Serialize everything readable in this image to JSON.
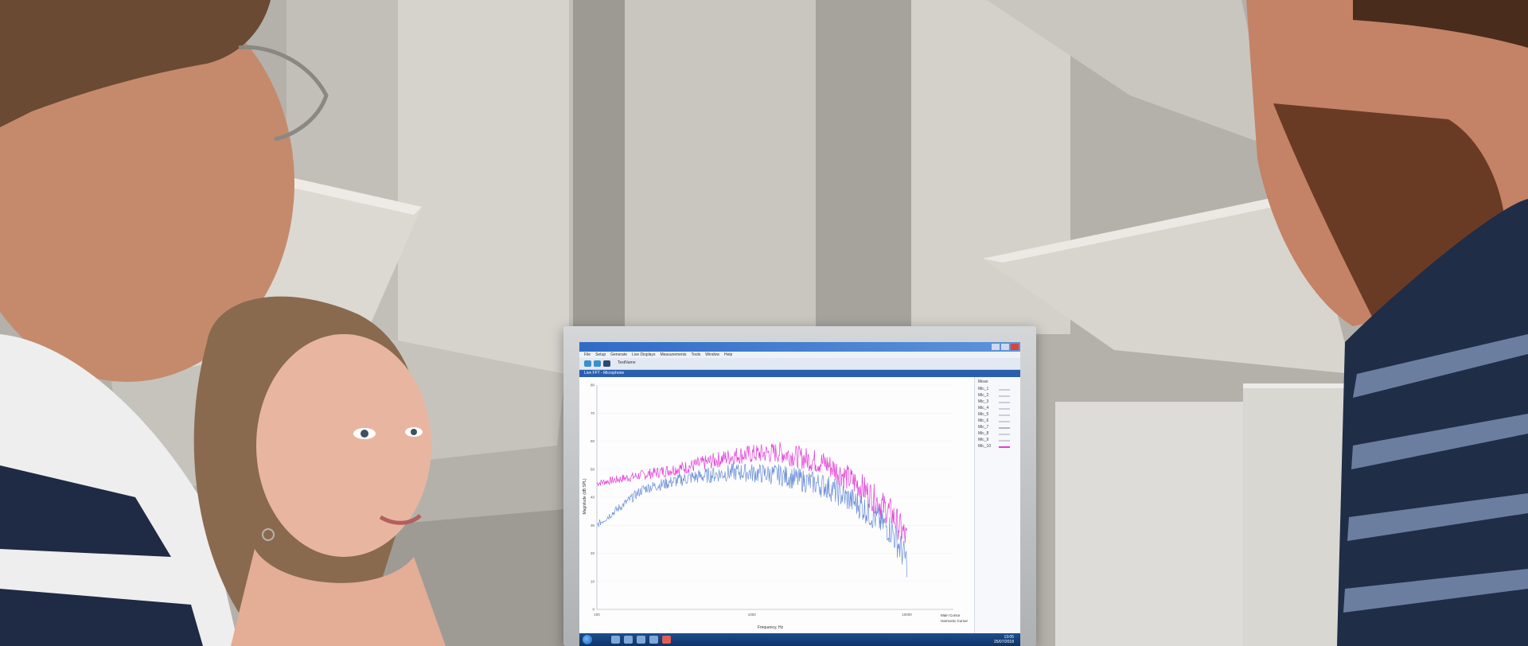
{
  "software": {
    "menu_items": [
      "File",
      "Setup",
      "Generate",
      "Live Displays",
      "Measurements",
      "Tools",
      "Window",
      "Help"
    ],
    "test_name": "TestName",
    "panel_title": "Live FFT - Microphone",
    "legend": {
      "title": "Mean",
      "items": [
        "Mic_1",
        "Mic_2",
        "Mic_3",
        "Mic_4",
        "Mic_5",
        "Mic_6",
        "Mic_7",
        "Mic_8",
        "Mic_9",
        "Mic_10"
      ]
    },
    "cursor_main": "Main Cursor",
    "cursor_harmonic": "Harmonic Cursor",
    "clock_time": "13:05",
    "clock_date": "25/07/2018"
  },
  "chart_data": {
    "type": "line",
    "xlabel": "Frequency, Hz",
    "ylabel": "Magnitude (dB SPL)",
    "x_scale": "log",
    "x_ticks": [
      "100",
      "1000",
      "10000"
    ],
    "y_ticks": [
      "80",
      "70",
      "60",
      "50",
      "40",
      "30",
      "20",
      "10",
      "0"
    ],
    "series": [
      {
        "color": "#e23ed6",
        "x": [
          100,
          200,
          400,
          800,
          1500,
          3000,
          5000,
          8000,
          10000
        ],
        "values": [
          45,
          48,
          51,
          55,
          56,
          52,
          44,
          34,
          25
        ]
      },
      {
        "color": "#6b8fd9",
        "x": [
          100,
          200,
          400,
          800,
          1500,
          3000,
          5000,
          8000,
          10000
        ],
        "values": [
          30,
          43,
          47,
          49,
          48,
          44,
          37,
          28,
          17
        ]
      }
    ],
    "colors": {
      "magenta": "#e23ed6",
      "blue": "#6b8fd9"
    }
  }
}
